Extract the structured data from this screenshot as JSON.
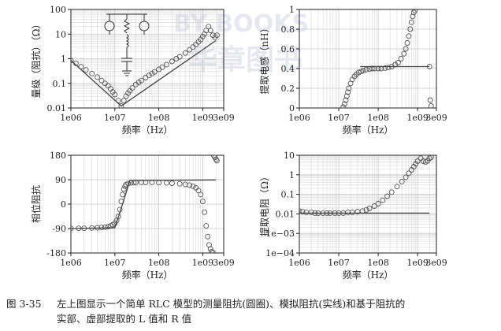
{
  "caption": {
    "figure_number": "图 3-35",
    "line1": "左上图显示一个简单 RLC 模型的测量阻抗(圆圈)、模拟阻抗(实线)和基于阻抗的",
    "line2": "实部、虚部提取的 L 值和 R 值"
  },
  "watermark": {
    "text1": "BY BOOKS",
    "text2": "华章图书"
  },
  "colors": {
    "measured": "#555555",
    "model": "#444444",
    "grid": "#c8c8c8",
    "axis": "#222222"
  },
  "chart_data": [
    {
      "id": "impedance",
      "type": "scatter",
      "xscale": "log",
      "yscale": "log",
      "xlim": [
        1000000.0,
        3000000000.0
      ],
      "ylim": [
        0.01,
        100
      ],
      "xticks": [
        1000000.0,
        10000000.0,
        100000000.0,
        1000000000.0,
        3000000000.0
      ],
      "xticklabels": [
        "1e06",
        "1e07",
        "1e08",
        "1e09",
        "3e09"
      ],
      "yticks": [
        0.01,
        0.1,
        1,
        10,
        100
      ],
      "yticklabels": [
        "0.01",
        "0.1",
        "1",
        "10",
        "100"
      ],
      "xlabel": "频率（Hz）",
      "ylabel": "量级（阻抗）（Ω）",
      "grid": true,
      "inset": "RLC schematic (top-left)",
      "series": [
        {
          "kind": "measured",
          "x": [
            1000000.0,
            1300000.0,
            1700000.0,
            2200000.0,
            3000000.0,
            4000000.0,
            5000000.0,
            6000000.0,
            7000000.0,
            8000000.0,
            9000000.0,
            10000000.0,
            12000000.0,
            14000000.0,
            16000000.0,
            18000000.0,
            20000000.0,
            22000000.0,
            25000000.0,
            30000000.0,
            35000000.0,
            40000000.0,
            50000000.0,
            60000000.0,
            70000000.0,
            80000000.0,
            100000000.0,
            120000000.0,
            150000000.0,
            200000000.0,
            250000000.0,
            300000000.0,
            400000000.0,
            500000000.0,
            600000000.0,
            700000000.0,
            800000000.0,
            900000000.0,
            1000000000.0,
            1100000000.0,
            1200000000.0,
            1350000000.0,
            1500000000.0,
            1700000000.0,
            1900000000.0,
            2100000000.0
          ],
          "y": [
            0.85,
            0.65,
            0.47,
            0.35,
            0.25,
            0.18,
            0.13,
            0.1,
            0.08,
            0.06,
            0.045,
            0.035,
            0.02,
            0.012,
            0.02,
            0.03,
            0.04,
            0.05,
            0.065,
            0.09,
            0.11,
            0.13,
            0.17,
            0.21,
            0.25,
            0.29,
            0.37,
            0.45,
            0.57,
            0.78,
            1.0,
            1.2,
            1.7,
            2.3,
            3.0,
            3.8,
            4.8,
            6,
            8,
            10,
            14,
            20,
            14,
            9,
            7.5,
            9
          ]
        },
        {
          "kind": "model",
          "x": [
            1000000.0,
            14000000.0,
            2000000000.0
          ],
          "y": [
            0.85,
            0.012,
            5.5
          ]
        }
      ]
    },
    {
      "id": "inductance",
      "type": "scatter",
      "xscale": "log",
      "yscale": "linear",
      "xlim": [
        1000000.0,
        3000000000.0
      ],
      "ylim": [
        0,
        1
      ],
      "xticks": [
        1000000.0,
        10000000.0,
        100000000.0,
        1000000000.0,
        3000000000.0
      ],
      "xticklabels": [
        "1e06",
        "1e07",
        "1e08",
        "1e09",
        "3e09"
      ],
      "yticks": [
        0,
        0.2,
        0.4,
        0.6,
        0.8,
        1
      ],
      "yticklabels": [
        "0",
        "0.2",
        "0.4",
        "0.6",
        "0.8",
        "1"
      ],
      "xlabel": "频率（Hz）",
      "ylabel": "提取电感（nH）",
      "grid": true,
      "series": [
        {
          "kind": "measured",
          "x": [
            13000000.0,
            14000000.0,
            15000000.0,
            16000000.0,
            17000000.0,
            18000000.0,
            20000000.0,
            22000000.0,
            25000000.0,
            28000000.0,
            32000000.0,
            37000000.0,
            42000000.0,
            50000000.0,
            60000000.0,
            70000000.0,
            80000000.0,
            100000000.0,
            120000000.0,
            150000000.0,
            180000000.0,
            220000000.0,
            270000000.0,
            320000000.0,
            380000000.0,
            450000000.0,
            500000000.0,
            550000000.0,
            600000000.0,
            650000000.0,
            700000000.0,
            750000000.0,
            800000000.0,
            850000000.0,
            2000000000.0,
            2100000000.0,
            2200000000.0
          ],
          "y": [
            0.01,
            0.04,
            0.08,
            0.12,
            0.16,
            0.2,
            0.25,
            0.29,
            0.32,
            0.34,
            0.36,
            0.37,
            0.38,
            0.39,
            0.395,
            0.4,
            0.4,
            0.4,
            0.4,
            0.405,
            0.41,
            0.42,
            0.44,
            0.46,
            0.5,
            0.55,
            0.6,
            0.66,
            0.73,
            0.8,
            0.87,
            0.93,
            0.97,
            0.99,
            0.42,
            0.08,
            0.02
          ]
        },
        {
          "kind": "model",
          "x": [
            35000000.0,
            2000000000.0
          ],
          "y": [
            0.42,
            0.42
          ]
        }
      ]
    },
    {
      "id": "phase",
      "type": "scatter",
      "xscale": "log",
      "yscale": "linear",
      "xlim": [
        1000000.0,
        3000000000.0
      ],
      "ylim": [
        -180,
        180
      ],
      "xticks": [
        1000000.0,
        10000000.0,
        100000000.0,
        1000000000.0,
        3000000000.0
      ],
      "xticklabels": [
        "1e06",
        "1e07",
        "1e08",
        "1e09",
        "3e09"
      ],
      "yticks": [
        -180,
        -90,
        0,
        90,
        180
      ],
      "yticklabels": [
        "-180",
        "-90",
        "0",
        "90",
        "180"
      ],
      "xlabel": "频率（Hz）",
      "ylabel": "相位阻抗",
      "grid": true,
      "series": [
        {
          "kind": "measured",
          "x": [
            1000000.0,
            1500000.0,
            2000000.0,
            3000000.0,
            4000000.0,
            5000000.0,
            6000000.0,
            7000000.0,
            8000000.0,
            9000000.0,
            10000000.0,
            11000000.0,
            12000000.0,
            13000000.0,
            14000000.0,
            15000000.0,
            16000000.0,
            17000000.0,
            18000000.0,
            20000000.0,
            23000000.0,
            27000000.0,
            30000000.0,
            40000000.0,
            50000000.0,
            70000000.0,
            100000000.0,
            150000000.0,
            200000000.0,
            300000000.0,
            400000000.0,
            500000000.0,
            600000000.0,
            700000000.0,
            800000000.0,
            900000000.0,
            1000000000.0,
            1100000000.0,
            1200000000.0,
            1300000000.0,
            1400000000.0,
            1500000000.0,
            1600000000.0,
            1700000000.0,
            1800000000.0,
            1900000000.0,
            2000000000.0,
            2100000000.0
          ],
          "y": [
            -89,
            -89,
            -89,
            -88,
            -87,
            -86,
            -85,
            -83,
            -80,
            -76,
            -70,
            -60,
            -45,
            -20,
            10,
            35,
            55,
            66,
            72,
            76,
            78,
            79,
            80,
            80,
            80,
            80,
            79,
            78,
            77,
            75,
            73,
            70,
            66,
            60,
            50,
            35,
            10,
            -30,
            -80,
            -120,
            -150,
            -165,
            -175,
            -178,
            178,
            172,
            165,
            160
          ]
        },
        {
          "kind": "model",
          "x": [
            1000000.0,
            10000000.0,
            15000000.0,
            22000000.0,
            2000000000.0
          ],
          "y": [
            -90,
            -87,
            0,
            87,
            89
          ]
        }
      ]
    },
    {
      "id": "resistance",
      "type": "scatter",
      "xscale": "log",
      "yscale": "log",
      "xlim": [
        1000000.0,
        3000000000.0
      ],
      "ylim": [
        0.0001,
        10
      ],
      "xticks": [
        1000000.0,
        10000000.0,
        100000000.0,
        1000000000.0,
        3000000000.0
      ],
      "xticklabels": [
        "1e06",
        "1e07",
        "1e08",
        "1e09",
        "3e09"
      ],
      "yticks": [
        0.0001,
        0.001,
        0.01,
        0.1,
        1,
        10
      ],
      "yticklabels": [
        "1e−04",
        "1e−03",
        "0.01",
        "0.1",
        "1",
        "10"
      ],
      "xlabel": "频率（Hz）",
      "ylabel": "提取电阻（Ω）",
      "grid": true,
      "series": [
        {
          "kind": "measured",
          "x": [
            1000000.0,
            1200000.0,
            1500000.0,
            2000000.0,
            2500000.0,
            3000000.0,
            4000000.0,
            5000000.0,
            6000000.0,
            8000000.0,
            10000000.0,
            13000000.0,
            17000000.0,
            22000000.0,
            30000000.0,
            40000000.0,
            50000000.0,
            60000000.0,
            80000000.0,
            100000000.0,
            130000000.0,
            170000000.0,
            220000000.0,
            300000000.0,
            400000000.0,
            500000000.0,
            600000000.0,
            700000000.0,
            800000000.0,
            900000000.0,
            1000000000.0,
            1200000000.0,
            1400000000.0,
            1600000000.0,
            1800000000.0,
            2000000000.0,
            2200000000.0
          ],
          "y": [
            0.014,
            0.013,
            0.012,
            0.012,
            0.011,
            0.011,
            0.011,
            0.011,
            0.011,
            0.011,
            0.011,
            0.011,
            0.012,
            0.012,
            0.013,
            0.014,
            0.016,
            0.019,
            0.025,
            0.033,
            0.05,
            0.08,
            0.13,
            0.25,
            0.45,
            0.75,
            1.2,
            1.8,
            2.6,
            3.6,
            5,
            7,
            5,
            4.5,
            5.2,
            7,
            8
          ]
        },
        {
          "kind": "model",
          "x": [
            1000000.0,
            2000000000.0
          ],
          "y": [
            0.011,
            0.011
          ]
        }
      ]
    }
  ]
}
